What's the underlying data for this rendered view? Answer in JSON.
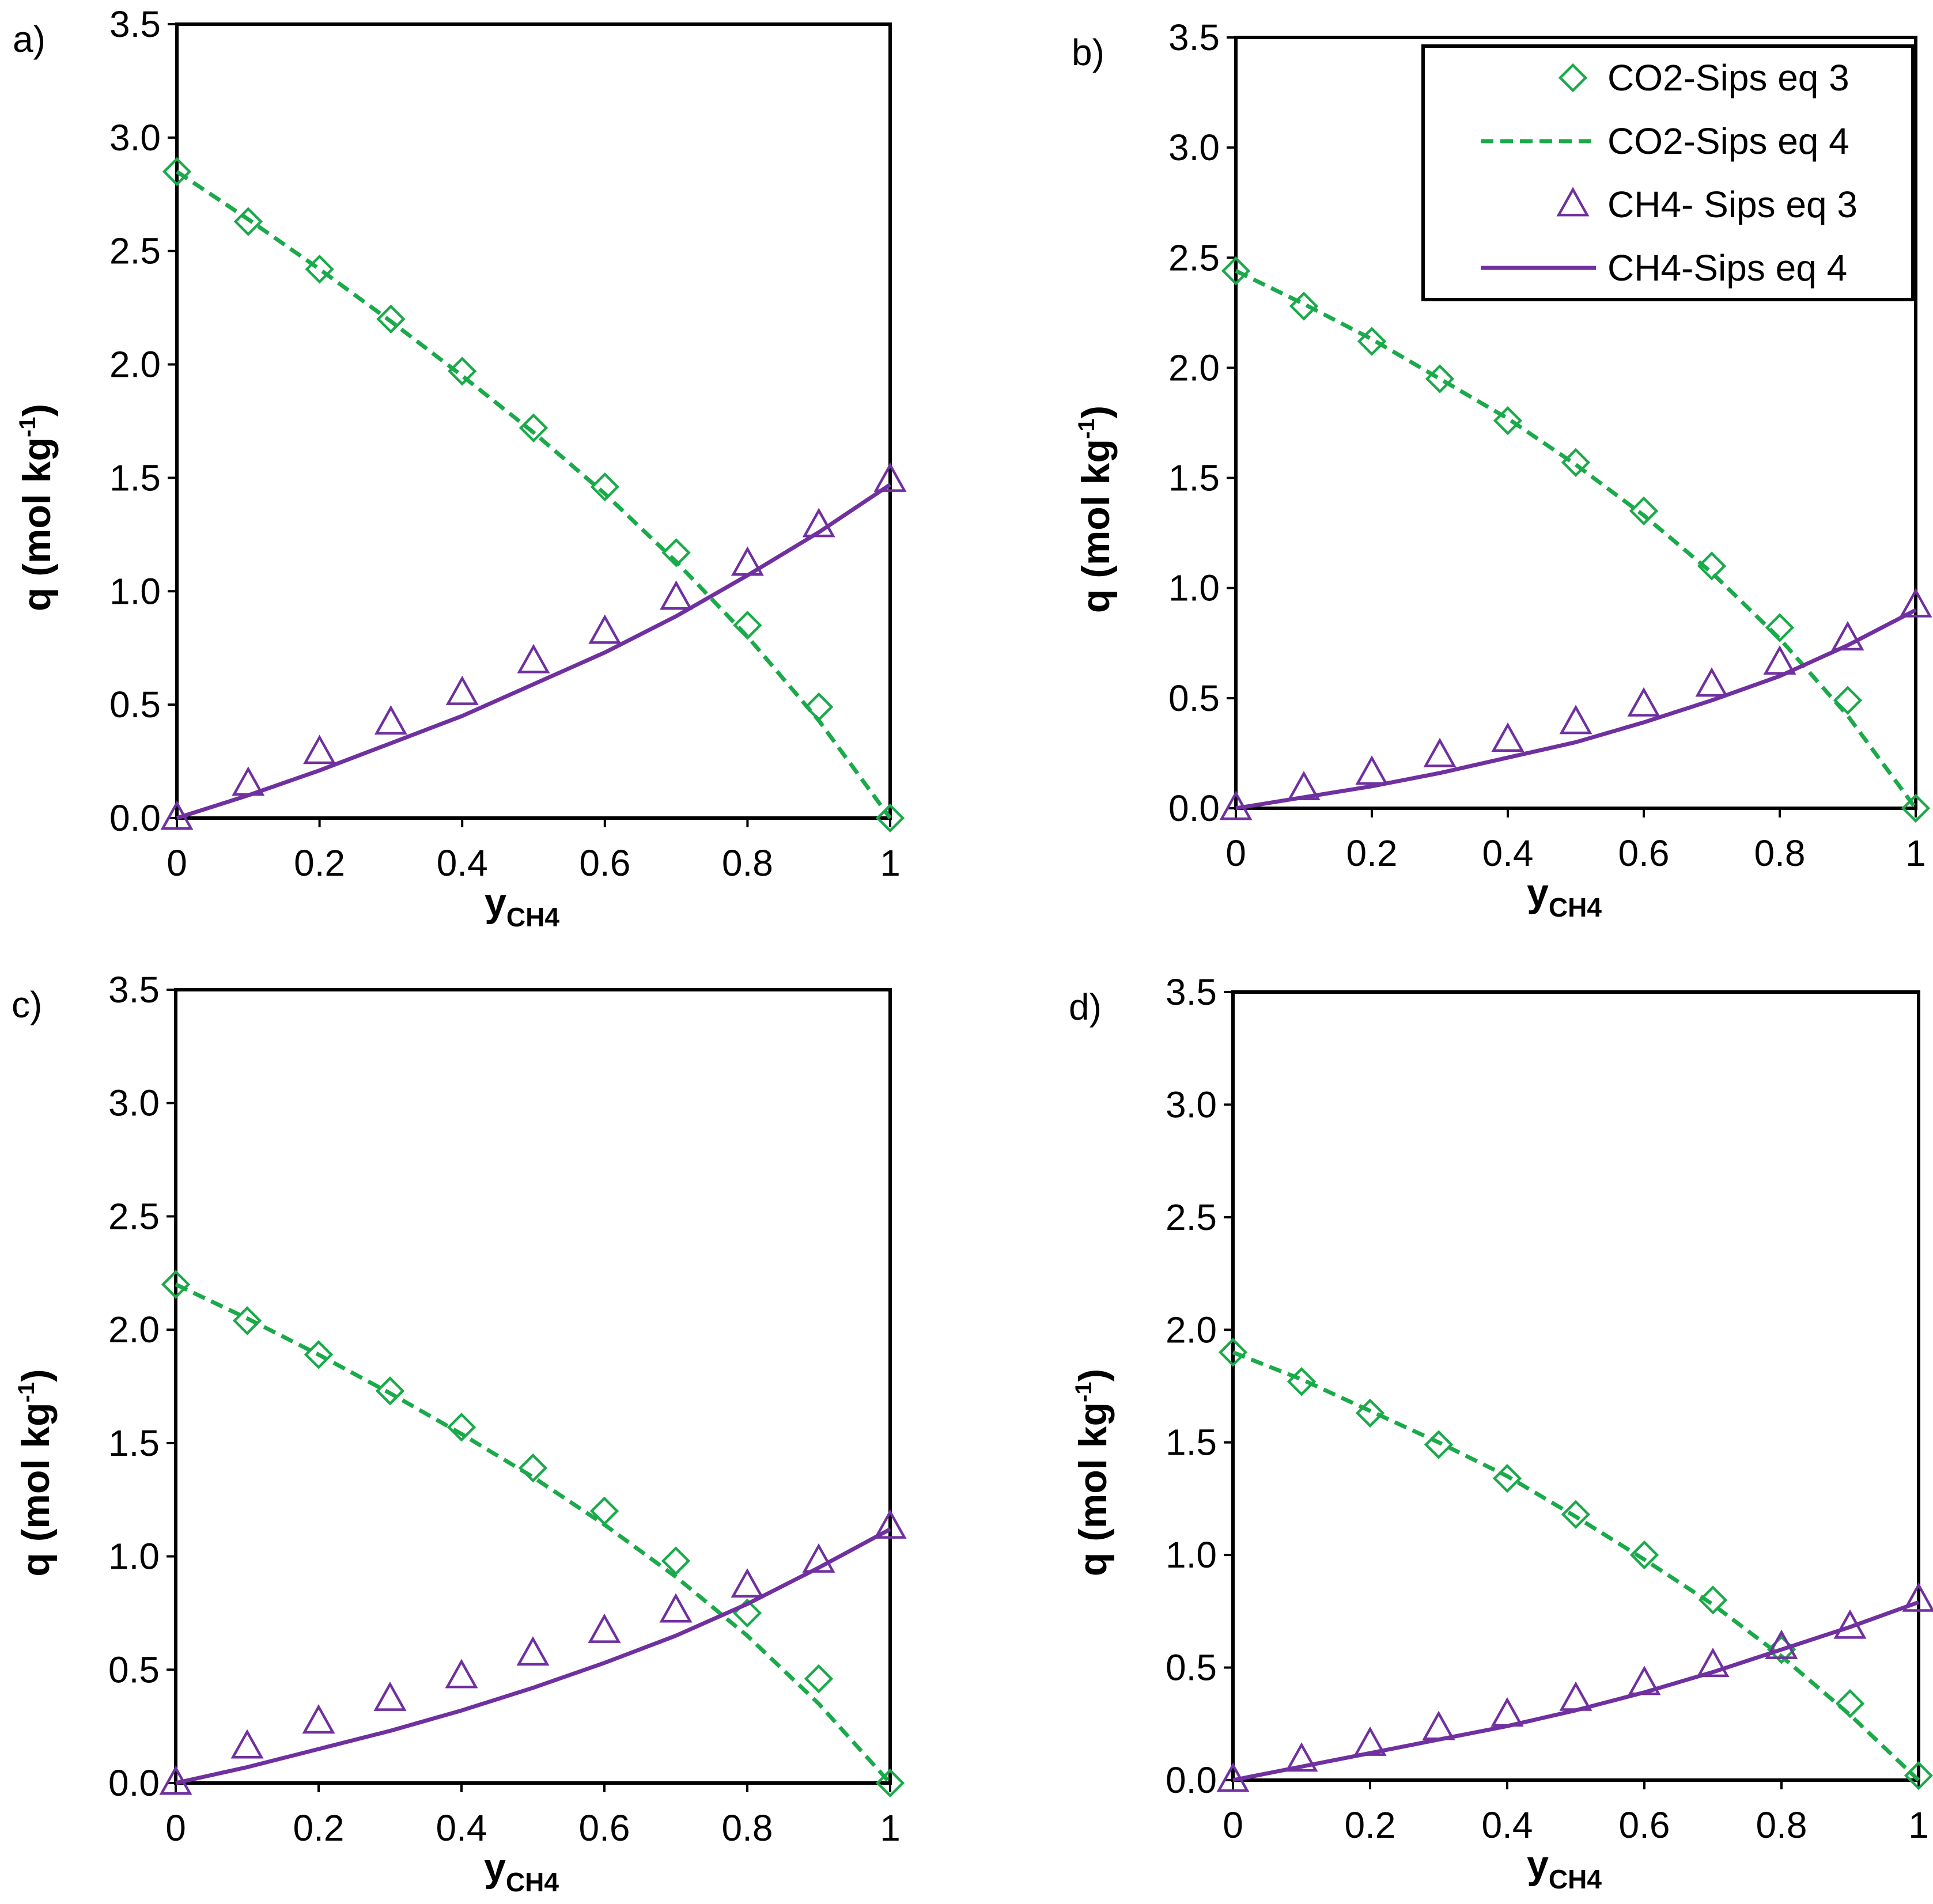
{
  "chart_data": [
    {
      "type": "line",
      "panel_label": "a)",
      "xlabel_main": "y",
      "xlabel_sub": "CH4",
      "ylabel_main": "q (mol kg",
      "ylabel_sup": "-1",
      "ylabel_close": ")",
      "xlim": [
        0,
        1
      ],
      "ylim": [
        0,
        3.5
      ],
      "x_ticks": [
        "0",
        "0.2",
        "0.4",
        "0.6",
        "0.8",
        "1"
      ],
      "y_ticks": [
        "0.0",
        "0.5",
        "1.0",
        "1.5",
        "2.0",
        "2.5",
        "3.0",
        "3.5"
      ],
      "x": [
        0,
        0.1,
        0.2,
        0.3,
        0.4,
        0.5,
        0.6,
        0.7,
        0.8,
        0.9,
        1
      ],
      "series": [
        {
          "name": "CO2-Sips eq 3",
          "style": "diamond",
          "color": "#1aaa4a",
          "values": [
            2.85,
            2.63,
            2.42,
            2.2,
            1.97,
            1.72,
            1.46,
            1.17,
            0.85,
            0.49,
            0.0
          ]
        },
        {
          "name": "CO2-Sips eq 4",
          "style": "dashed",
          "color": "#1aaa4a",
          "values": [
            2.85,
            2.64,
            2.42,
            2.19,
            1.95,
            1.7,
            1.43,
            1.13,
            0.8,
            0.43,
            0.0
          ]
        },
        {
          "name": "CH4- Sips eq 3",
          "style": "triangle",
          "color": "#7030a0",
          "values": [
            0.0,
            0.15,
            0.29,
            0.42,
            0.55,
            0.69,
            0.82,
            0.97,
            1.12,
            1.29,
            1.49
          ]
        },
        {
          "name": "CH4-Sips eq 4",
          "style": "solid",
          "color": "#7030a0",
          "values": [
            0.0,
            0.1,
            0.21,
            0.33,
            0.45,
            0.59,
            0.73,
            0.89,
            1.07,
            1.26,
            1.47
          ]
        }
      ]
    },
    {
      "type": "line",
      "panel_label": "b)",
      "xlabel_main": "y",
      "xlabel_sub": "CH4",
      "ylabel_main": "q (mol kg",
      "ylabel_sup": "-1",
      "ylabel_close": ")",
      "xlim": [
        0,
        1
      ],
      "ylim": [
        0,
        3.5
      ],
      "x_ticks": [
        "0",
        "0.2",
        "0.4",
        "0.6",
        "0.8",
        "1"
      ],
      "y_ticks": [
        "0.0",
        "0.5",
        "1.0",
        "1.5",
        "2.0",
        "2.5",
        "3.0",
        "3.5"
      ],
      "x": [
        0,
        0.1,
        0.2,
        0.3,
        0.4,
        0.5,
        0.6,
        0.7,
        0.8,
        0.9,
        1
      ],
      "legend": {
        "position": "top-right",
        "entries": [
          "CO2-Sips eq 3",
          "CO2-Sips eq 4",
          "CH4- Sips eq 3",
          "CH4-Sips eq 4"
        ]
      },
      "series": [
        {
          "name": "CO2-Sips eq 3",
          "style": "diamond",
          "color": "#1aaa4a",
          "values": [
            2.44,
            2.28,
            2.12,
            1.95,
            1.76,
            1.57,
            1.35,
            1.1,
            0.82,
            0.49,
            0.0
          ]
        },
        {
          "name": "CO2-Sips eq 4",
          "style": "dashed",
          "color": "#1aaa4a",
          "values": [
            2.44,
            2.29,
            2.13,
            1.95,
            1.77,
            1.56,
            1.33,
            1.07,
            0.77,
            0.42,
            0.0
          ]
        },
        {
          "name": "CH4- Sips eq 3",
          "style": "triangle",
          "color": "#7030a0",
          "values": [
            0.0,
            0.09,
            0.16,
            0.24,
            0.31,
            0.39,
            0.47,
            0.56,
            0.66,
            0.77,
            0.92
          ]
        },
        {
          "name": "CH4-Sips eq 4",
          "style": "solid",
          "color": "#7030a0",
          "values": [
            0.0,
            0.05,
            0.1,
            0.16,
            0.23,
            0.3,
            0.39,
            0.49,
            0.6,
            0.74,
            0.9
          ]
        }
      ]
    },
    {
      "type": "line",
      "panel_label": "c)",
      "xlabel_main": "y",
      "xlabel_sub": "CH4",
      "ylabel_main": "q (mol kg",
      "ylabel_sup": "-1",
      "ylabel_close": ")",
      "xlim": [
        0,
        1
      ],
      "ylim": [
        0,
        3.5
      ],
      "x_ticks": [
        "0",
        "0.2",
        "0.4",
        "0.6",
        "0.8",
        "1"
      ],
      "y_ticks": [
        "0.0",
        "0.5",
        "1.0",
        "1.5",
        "2.0",
        "2.5",
        "3.0",
        "3.5"
      ],
      "x": [
        0,
        0.1,
        0.2,
        0.3,
        0.4,
        0.5,
        0.6,
        0.7,
        0.8,
        0.9,
        1
      ],
      "series": [
        {
          "name": "CO2-Sips eq 3",
          "style": "diamond",
          "color": "#1aaa4a",
          "values": [
            2.2,
            2.04,
            1.89,
            1.73,
            1.57,
            1.39,
            1.2,
            0.98,
            0.75,
            0.46,
            0.0
          ]
        },
        {
          "name": "CO2-Sips eq 4",
          "style": "dashed",
          "color": "#1aaa4a",
          "values": [
            2.2,
            2.05,
            1.89,
            1.72,
            1.54,
            1.35,
            1.14,
            0.91,
            0.65,
            0.35,
            0.0
          ]
        },
        {
          "name": "CH4- Sips eq 3",
          "style": "triangle",
          "color": "#7030a0",
          "values": [
            0.0,
            0.16,
            0.27,
            0.37,
            0.47,
            0.57,
            0.67,
            0.76,
            0.87,
            0.98,
            1.13
          ]
        },
        {
          "name": "CH4-Sips eq 4",
          "style": "solid",
          "color": "#7030a0",
          "values": [
            0.0,
            0.07,
            0.15,
            0.23,
            0.32,
            0.42,
            0.53,
            0.65,
            0.79,
            0.95,
            1.12
          ]
        }
      ]
    },
    {
      "type": "line",
      "panel_label": "d)",
      "xlabel_main": "y",
      "xlabel_sub": "CH4",
      "ylabel_main": "q (mol kg",
      "ylabel_sup": "-1",
      "ylabel_close": ")",
      "xlim": [
        0,
        1
      ],
      "ylim": [
        0,
        3.5
      ],
      "x_ticks": [
        "0",
        "0.2",
        "0.4",
        "0.6",
        "0.8",
        "1"
      ],
      "y_ticks": [
        "0.0",
        "0.5",
        "1.0",
        "1.5",
        "2.0",
        "2.5",
        "3.0",
        "3.5"
      ],
      "x": [
        0,
        0.1,
        0.2,
        0.3,
        0.4,
        0.5,
        0.6,
        0.7,
        0.8,
        0.9,
        1
      ],
      "series": [
        {
          "name": "CO2-Sips eq 3",
          "style": "diamond",
          "color": "#1aaa4a",
          "values": [
            1.9,
            1.77,
            1.63,
            1.49,
            1.34,
            1.18,
            1.0,
            0.8,
            0.58,
            0.34,
            0.02
          ]
        },
        {
          "name": "CO2-Sips eq 4",
          "style": "dashed",
          "color": "#1aaa4a",
          "values": [
            1.9,
            1.78,
            1.64,
            1.5,
            1.35,
            1.17,
            0.98,
            0.78,
            0.55,
            0.29,
            0.0
          ]
        },
        {
          "name": "CH4- Sips eq 3",
          "style": "triangle",
          "color": "#7030a0",
          "values": [
            0.0,
            0.09,
            0.16,
            0.23,
            0.29,
            0.36,
            0.43,
            0.51,
            0.59,
            0.68,
            0.8
          ]
        },
        {
          "name": "CH4-Sips eq 4",
          "style": "solid",
          "color": "#7030a0",
          "values": [
            0.0,
            0.06,
            0.12,
            0.18,
            0.24,
            0.31,
            0.39,
            0.48,
            0.58,
            0.68,
            0.79
          ]
        }
      ]
    }
  ]
}
